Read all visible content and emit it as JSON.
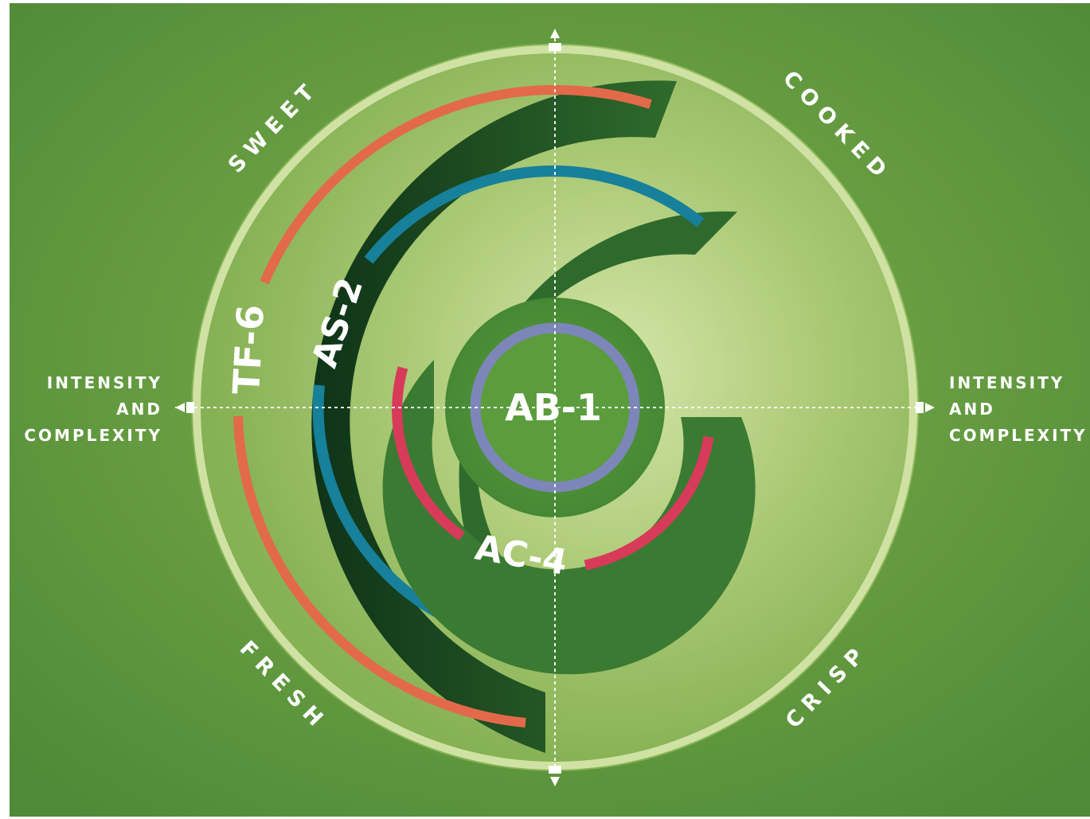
{
  "quadrants": {
    "top_left": "SWEET",
    "top_right": "COOKED",
    "bottom_left": "FRESH",
    "bottom_right": "CRISP"
  },
  "axis": {
    "left_lines": [
      "INTENSITY",
      "AND",
      "COMPLEXITY"
    ],
    "right_lines": [
      "INTENSITY",
      "AND",
      "COMPLEXITY"
    ]
  },
  "rings": {
    "tf6": "TF-6",
    "as2": "AS-2",
    "ac4": "AC-4",
    "ab1": "AB-1"
  },
  "colors": {
    "background": "#5a923c",
    "disc_light": "#d2e4a6",
    "disc_mid": "#97bf5f",
    "outer_ring": "#c9dd9c",
    "tf6_band": "#143f1e",
    "tf6_stripe": "#e26a4a",
    "as2_band": "#2f6a2d",
    "as2_stripe": "#17809b",
    "ac4_band": "#3b7a32",
    "ac4_stripe": "#d83a5a",
    "ab1_disc": "#5b9d3d",
    "ab1_ring": "#7d86b8"
  }
}
